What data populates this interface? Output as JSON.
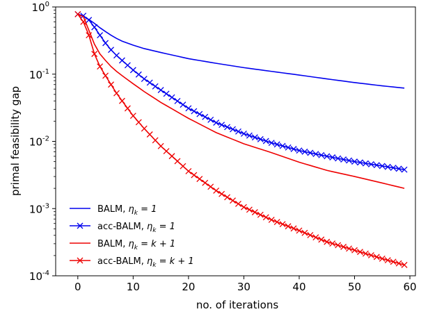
{
  "chart_data": {
    "type": "line",
    "title": "",
    "xlabel": "no. of iterations",
    "ylabel": "primal feasibility gap",
    "xlim": [
      -4,
      61
    ],
    "ylim": [
      0.0001,
      1
    ],
    "yscale": "log",
    "xticks": [
      0,
      10,
      20,
      30,
      40,
      50,
      60
    ],
    "xtick_labels": [
      "0",
      "10",
      "20",
      "30",
      "40",
      "50",
      "60"
    ],
    "yticks": [
      1,
      0.1,
      0.01,
      0.001,
      0.0001
    ],
    "ytick_labels": [
      {
        "base": "10",
        "exp": "0"
      },
      {
        "base": "10",
        "exp": "-1"
      },
      {
        "base": "10",
        "exp": "-2"
      },
      {
        "base": "10",
        "exp": "-3"
      },
      {
        "base": "10",
        "exp": "-4"
      }
    ],
    "grid": false,
    "legend_position": "lower-left",
    "x_range": [
      0,
      59
    ],
    "series": [
      {
        "name_parts": {
          "prefix": "BALM, ",
          "eta": "η",
          "sub": "k",
          "rhs": " = 1"
        },
        "color": "#0000ee",
        "marker": "none",
        "points": [
          [
            0,
            0.78
          ],
          [
            1,
            0.72
          ],
          [
            2,
            0.65
          ],
          [
            3,
            0.57
          ],
          [
            4,
            0.49
          ],
          [
            5,
            0.43
          ],
          [
            6,
            0.38
          ],
          [
            7,
            0.34
          ],
          [
            8,
            0.31
          ],
          [
            10,
            0.27
          ],
          [
            12,
            0.24
          ],
          [
            15,
            0.21
          ],
          [
            20,
            0.17
          ],
          [
            25,
            0.145
          ],
          [
            30,
            0.125
          ],
          [
            35,
            0.11
          ],
          [
            40,
            0.097
          ],
          [
            45,
            0.085
          ],
          [
            50,
            0.075
          ],
          [
            55,
            0.067
          ],
          [
            59,
            0.062
          ]
        ]
      },
      {
        "name_parts": {
          "prefix": "acc-BALM, ",
          "eta": "η",
          "sub": "k",
          "rhs": " = 1"
        },
        "color": "#0000ee",
        "marker": "x",
        "points": [
          [
            0,
            0.78
          ],
          [
            1,
            0.74
          ],
          [
            2,
            0.64
          ],
          [
            3,
            0.5
          ],
          [
            4,
            0.38
          ],
          [
            5,
            0.29
          ],
          [
            6,
            0.23
          ],
          [
            7,
            0.19
          ],
          [
            8,
            0.16
          ],
          [
            10,
            0.115
          ],
          [
            12,
            0.085
          ],
          [
            15,
            0.058
          ],
          [
            20,
            0.031
          ],
          [
            25,
            0.019
          ],
          [
            30,
            0.013
          ],
          [
            35,
            0.0095
          ],
          [
            40,
            0.0073
          ],
          [
            45,
            0.006
          ],
          [
            50,
            0.005
          ],
          [
            55,
            0.0043
          ],
          [
            59,
            0.0038
          ]
        ]
      },
      {
        "name_parts": {
          "prefix": "BALM, ",
          "eta": "η",
          "sub": "k",
          "rhs": " = k + 1"
        },
        "color": "#ee0000",
        "marker": "none",
        "points": [
          [
            0,
            0.78
          ],
          [
            1,
            0.72
          ],
          [
            2,
            0.45
          ],
          [
            3,
            0.28
          ],
          [
            4,
            0.2
          ],
          [
            5,
            0.16
          ],
          [
            6,
            0.13
          ],
          [
            7,
            0.11
          ],
          [
            8,
            0.095
          ],
          [
            10,
            0.072
          ],
          [
            12,
            0.055
          ],
          [
            15,
            0.038
          ],
          [
            20,
            0.022
          ],
          [
            25,
            0.0135
          ],
          [
            30,
            0.0092
          ],
          [
            35,
            0.0068
          ],
          [
            40,
            0.0049
          ],
          [
            45,
            0.0037
          ],
          [
            50,
            0.003
          ],
          [
            55,
            0.0024
          ],
          [
            59,
            0.002
          ]
        ]
      },
      {
        "name_parts": {
          "prefix": "acc-BALM, ",
          "eta": "η",
          "sub": "k",
          "rhs": " = k + 1"
        },
        "color": "#ee0000",
        "marker": "x",
        "points": [
          [
            0,
            0.78
          ],
          [
            1,
            0.6
          ],
          [
            2,
            0.38
          ],
          [
            3,
            0.2
          ],
          [
            4,
            0.13
          ],
          [
            5,
            0.095
          ],
          [
            6,
            0.07
          ],
          [
            7,
            0.052
          ],
          [
            8,
            0.04
          ],
          [
            10,
            0.024
          ],
          [
            12,
            0.0155
          ],
          [
            15,
            0.0085
          ],
          [
            20,
            0.0036
          ],
          [
            25,
            0.00185
          ],
          [
            30,
            0.00105
          ],
          [
            35,
            0.00068
          ],
          [
            40,
            0.00047
          ],
          [
            45,
            0.00032
          ],
          [
            50,
            0.00024
          ],
          [
            55,
            0.00018
          ],
          [
            59,
            0.000145
          ]
        ]
      }
    ]
  }
}
